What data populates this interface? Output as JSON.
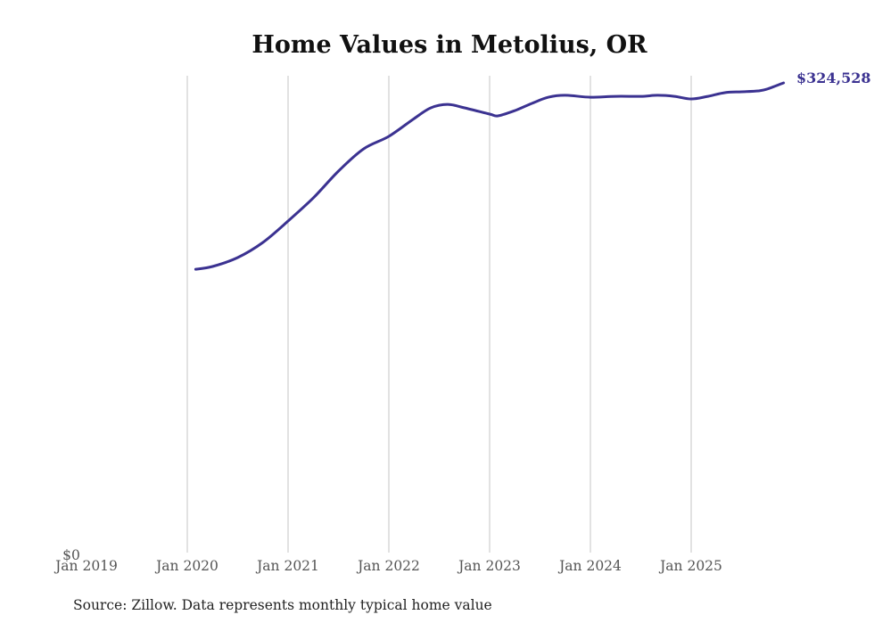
{
  "chart_data": {
    "type": "line",
    "title": "Home Values in Metolius, OR",
    "xlabel": "",
    "ylabel": "",
    "source": "Source: Zillow. Data represents monthly typical home value",
    "x_ticks": [
      "Jan 2019",
      "Jan 2020",
      "Jan 2021",
      "Jan 2022",
      "Jan 2023",
      "Jan 2024",
      "Jan 2025"
    ],
    "y_ticks": [
      "$0"
    ],
    "ylim": [
      0,
      324528
    ],
    "xlim": [
      "2019-01",
      "2025-12"
    ],
    "grid": "vertical",
    "legend": "none",
    "end_label": "$324,528",
    "line_color": "#3b3291",
    "series": [
      {
        "name": "Typical home value",
        "x": [
          "2020-02",
          "2020-04",
          "2020-07",
          "2020-10",
          "2021-01",
          "2021-04",
          "2021-07",
          "2021-10",
          "2022-01",
          "2022-04",
          "2022-06",
          "2022-08",
          "2022-10",
          "2023-01",
          "2023-02",
          "2023-04",
          "2023-06",
          "2023-08",
          "2023-10",
          "2024-01",
          "2024-04",
          "2024-07",
          "2024-09",
          "2024-11",
          "2025-01",
          "2025-03",
          "2025-05",
          "2025-07",
          "2025-09",
          "2025-10",
          "2025-12"
        ],
        "values": [
          196500,
          198400,
          204500,
          214900,
          229600,
          245500,
          263900,
          279200,
          287800,
          300000,
          307400,
          309800,
          307400,
          303100,
          301900,
          305500,
          310400,
          314700,
          316000,
          314700,
          315300,
          315300,
          316000,
          315300,
          313500,
          315300,
          317800,
          318400,
          319000,
          320200,
          324528
        ]
      }
    ]
  }
}
